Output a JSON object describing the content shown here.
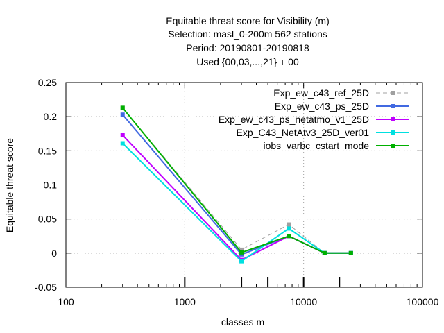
{
  "chart_data": {
    "type": "line",
    "title_lines": [
      "Equitable threat score  for Visibility (m)",
      "Selection: masl_0-200m    562 stations",
      "Period: 20190801-20190818",
      "Used {00,03,...,21} + 00"
    ],
    "xlabel": "classes m",
    "ylabel": "Equitable threat score",
    "xscale": "log",
    "xlim": [
      100,
      100000
    ],
    "ylim": [
      -0.05,
      0.25
    ],
    "x_ticks": [
      100,
      1000,
      10000,
      100000
    ],
    "x_tick_labels": [
      "100",
      "1000",
      "10000",
      "100000"
    ],
    "y_ticks": [
      -0.05,
      0,
      0.05,
      0.1,
      0.15,
      0.2,
      0.25
    ],
    "y_tick_labels": [
      "-0.05",
      "0",
      "0.05",
      "0.1",
      "0.15",
      "0.2",
      "0.25"
    ],
    "grid": true,
    "legend_position": "top-right",
    "class_markers": [
      1000,
      3000,
      5000,
      10000,
      20000
    ],
    "series": [
      {
        "name": "Exp_ew_c43_ref_25D",
        "color": "#a0a0a0",
        "dashed": true,
        "x": [
          300,
          3000,
          7500,
          15000,
          25000
        ],
        "y": [
          0.213,
          0.005,
          0.042,
          0.0,
          0.0
        ]
      },
      {
        "name": "Exp_ew_c43_ps_25D",
        "color": "#4169e1",
        "dashed": false,
        "x": [
          300,
          3000,
          7500,
          15000,
          25000
        ],
        "y": [
          0.203,
          -0.002,
          0.025,
          0.0,
          0.0
        ]
      },
      {
        "name": "Exp_ew_c43_ps_netatmo_v1_25D",
        "color": "#c000ff",
        "dashed": false,
        "x": [
          300,
          3000,
          7500,
          15000,
          25000
        ],
        "y": [
          0.173,
          -0.01,
          0.025,
          0.0,
          0.0
        ]
      },
      {
        "name": "Exp_C43_NetAtv3_25D_ver01",
        "color": "#00e0e0",
        "dashed": false,
        "x": [
          300,
          3000,
          7500,
          15000,
          25000
        ],
        "y": [
          0.161,
          -0.012,
          0.036,
          0.0,
          0.0
        ]
      },
      {
        "name": "iobs_varbc_cstart_mode",
        "color": "#00b000",
        "dashed": false,
        "x": [
          300,
          3000,
          7500,
          15000,
          25000
        ],
        "y": [
          0.213,
          0.001,
          0.025,
          0.0,
          0.0
        ]
      }
    ]
  }
}
